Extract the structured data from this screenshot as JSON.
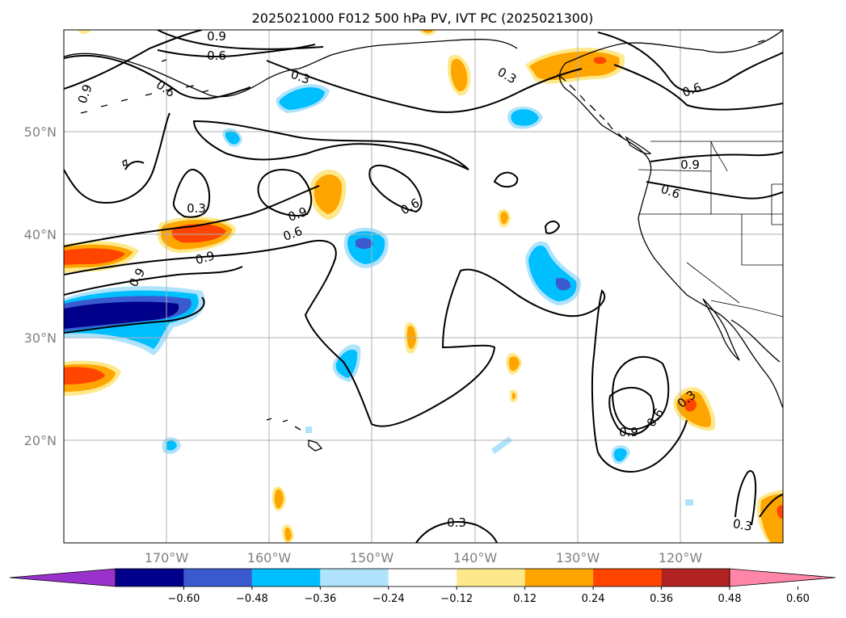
{
  "title": "2025021000 F012 500 hPa PV, IVT PC (2025021300)",
  "lat_labels": [
    "50°N",
    "40°N",
    "30°N",
    "20°N"
  ],
  "lon_labels": [
    "170°W",
    "160°W",
    "150°W",
    "140°W",
    "130°W",
    "120°W"
  ],
  "contour_labels": [
    "0.9",
    "0.6",
    "0.9",
    "0.6",
    "0.3",
    "0.3",
    "0.6",
    "0.9",
    "0.3",
    "0.9",
    "0.9",
    "0.6",
    "0.6",
    "0.9",
    "0.6",
    "0.9",
    "0.6",
    "0.3",
    "0.3",
    "0.3"
  ],
  "colorbar": {
    "ticks": [
      "−0.60",
      "−0.48",
      "−0.36",
      "−0.24",
      "−0.12",
      "0.12",
      "0.24",
      "0.36",
      "0.48",
      "0.60"
    ],
    "colors": [
      "#9932cc",
      "#00008b",
      "#3a5bcf",
      "#00bfff",
      "#aee3fb",
      "#ffffff",
      "#fde98b",
      "#ffa500",
      "#ff4500",
      "#b22222",
      "#ff86a8"
    ]
  },
  "colors": {
    "neg_strong": "#00008b",
    "neg_mid": "#3a5bcf",
    "neg_weak": "#00bfff",
    "neg_faint": "#aee3fb",
    "pos_faint": "#fde98b",
    "pos_weak": "#ffa500",
    "pos_mid": "#ff4500"
  }
}
